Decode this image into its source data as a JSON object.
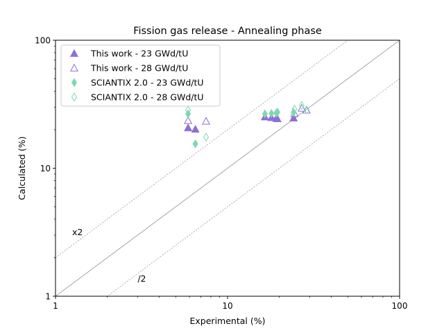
{
  "chart_data": {
    "type": "scatter",
    "title": "Fission gas release - Annealing phase",
    "xlabel": "Experimental (%)",
    "ylabel": "Calculated (%)",
    "xscale": "log",
    "yscale": "log",
    "xlim": [
      1,
      100
    ],
    "ylim": [
      1,
      100
    ],
    "x_ticks": [
      "1",
      "10",
      "100"
    ],
    "y_ticks": [
      "1",
      "10",
      "100"
    ],
    "grid": false,
    "legend_position": "top-left",
    "reference_lines": [
      {
        "label": "",
        "factor": 1,
        "style": "solid",
        "color": "#9a9a9a"
      },
      {
        "label": "x2",
        "factor": 2,
        "style": "dotted",
        "color": "#8a8a8a"
      },
      {
        "label": "/2",
        "factor": 0.5,
        "style": "dotted",
        "color": "#8a8a8a"
      }
    ],
    "annotations": [
      {
        "text": "x2",
        "x": 1.25,
        "y": 3.0
      },
      {
        "text": "/2",
        "x": 3.0,
        "y": 1.3
      }
    ],
    "series": [
      {
        "name": "This work - 23 GWd/tU",
        "marker": "triangle",
        "filled": true,
        "color": "#8d6fd6",
        "points": [
          {
            "x": 5.9,
            "y": 20.7
          },
          {
            "x": 6.5,
            "y": 20.2
          },
          {
            "x": 16.5,
            "y": 25.2
          },
          {
            "x": 18.0,
            "y": 24.9
          },
          {
            "x": 19.2,
            "y": 24.6
          },
          {
            "x": 19.5,
            "y": 24.4
          },
          {
            "x": 24.2,
            "y": 24.7
          }
        ]
      },
      {
        "name": "This work - 28 GWd/tU",
        "marker": "triangle",
        "filled": false,
        "color": "#8d6fd6",
        "points": [
          {
            "x": 5.9,
            "y": 23.6
          },
          {
            "x": 7.5,
            "y": 23.3
          },
          {
            "x": 24.5,
            "y": 26.8
          },
          {
            "x": 27.0,
            "y": 29.5
          },
          {
            "x": 28.8,
            "y": 28.5
          }
        ]
      },
      {
        "name": "SCIANTIX 2.0 - 23 GWd/tU",
        "marker": "diamond",
        "filled": true,
        "color": "#7fd8ae",
        "points": [
          {
            "x": 5.9,
            "y": 26.6
          },
          {
            "x": 6.5,
            "y": 15.5
          },
          {
            "x": 16.5,
            "y": 26.6
          },
          {
            "x": 18.0,
            "y": 26.8
          },
          {
            "x": 19.2,
            "y": 27.0
          },
          {
            "x": 19.5,
            "y": 27.4
          },
          {
            "x": 24.2,
            "y": 27.3
          }
        ]
      },
      {
        "name": "SCIANTIX 2.0 - 28 GWd/tU",
        "marker": "diamond",
        "filled": false,
        "color": "#7fd8ae",
        "points": [
          {
            "x": 5.9,
            "y": 28.5
          },
          {
            "x": 7.5,
            "y": 17.5
          },
          {
            "x": 24.5,
            "y": 28.9
          },
          {
            "x": 27.0,
            "y": 30.9
          },
          {
            "x": 28.8,
            "y": 28.6
          }
        ]
      }
    ]
  }
}
